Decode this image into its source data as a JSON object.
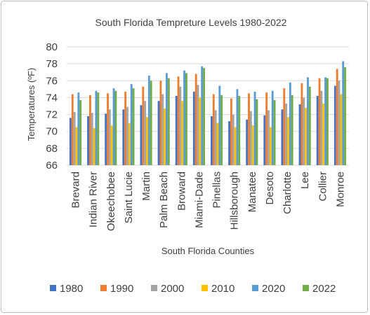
{
  "chart_data": {
    "type": "bar",
    "title": "South Florida Tempreture  Levels  1980-2022",
    "xlabel": "South Florida Counties",
    "ylabel": "Temperatures (ºF)",
    "ylim": [
      66,
      80
    ],
    "yticks": [
      66,
      68,
      70,
      72,
      74,
      76,
      78,
      80
    ],
    "grid": true,
    "legend_position": "bottom",
    "categories": [
      "Brevard",
      "Indian River",
      "Okeechobee",
      "Saint Lucie",
      "Martin",
      "Palm Beach",
      "Broward",
      "Miami-Dade",
      "Pinellas",
      "Hillsborough",
      "Manatee",
      "Desoto",
      "Charlotte",
      "Lee",
      "Collier",
      "Monroe"
    ],
    "series": [
      {
        "name": "1980",
        "color": "#4472c4",
        "values": [
          71.6,
          71.8,
          72.1,
          72.6,
          73.1,
          73.6,
          74.2,
          74.7,
          71.8,
          71.2,
          71.4,
          71.9,
          72.6,
          73.2,
          74.2,
          75.4
        ]
      },
      {
        "name": "1990",
        "color": "#ed7d31",
        "values": [
          74.4,
          74.3,
          74.5,
          74.7,
          75.3,
          76.0,
          76.5,
          76.8,
          74.4,
          73.9,
          74.5,
          74.6,
          75.1,
          75.7,
          76.3,
          77.4
        ]
      },
      {
        "name": "2000",
        "color": "#a5a5a5",
        "values": [
          72.3,
          72.2,
          72.6,
          72.9,
          73.6,
          74.4,
          75.3,
          75.5,
          72.5,
          72.0,
          72.4,
          72.5,
          73.3,
          74.0,
          74.8,
          76.0
        ]
      },
      {
        "name": "2010",
        "color": "#ffc000",
        "values": [
          70.5,
          70.4,
          70.7,
          71.0,
          71.7,
          72.7,
          73.6,
          74.0,
          71.0,
          70.5,
          70.7,
          70.5,
          71.7,
          72.8,
          73.3,
          74.4
        ]
      },
      {
        "name": "2020",
        "color": "#5b9bd5",
        "values": [
          74.6,
          74.8,
          75.1,
          75.6,
          76.6,
          76.9,
          77.2,
          77.7,
          75.4,
          75.0,
          74.7,
          74.8,
          75.8,
          76.4,
          76.4,
          78.3
        ]
      },
      {
        "name": "2022",
        "color": "#70ad47",
        "values": [
          73.7,
          74.6,
          74.8,
          75.1,
          76.0,
          76.3,
          76.9,
          77.5,
          74.3,
          74.2,
          73.8,
          73.7,
          74.3,
          75.3,
          76.3,
          77.6
        ]
      }
    ]
  }
}
